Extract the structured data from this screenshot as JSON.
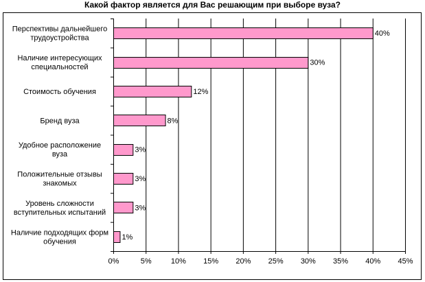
{
  "chart_data": {
    "type": "bar",
    "orientation": "horizontal",
    "title": "Какой фактор является для Вас решающим при выборе вуза?",
    "categories": [
      [
        "Перспективы дальнейшего",
        "трудоустройства"
      ],
      [
        "Наличие интересующих",
        "специальностей"
      ],
      [
        "Стоимость обучения"
      ],
      [
        "Бренд вуза"
      ],
      [
        "Удобное расположение",
        "вуза"
      ],
      [
        "Положительные отзывы",
        "знакомых"
      ],
      [
        "Уровень сложности",
        "вступительных испытаний"
      ],
      [
        "Наличие подходящих форм",
        "обучения"
      ]
    ],
    "values": [
      40,
      30,
      12,
      8,
      3,
      3,
      3,
      1
    ],
    "data_labels": [
      "40%",
      "30%",
      "12%",
      "8%",
      "3%",
      "3%",
      "3%",
      "1%"
    ],
    "xlim": [
      0,
      45
    ],
    "xticks": [
      0,
      5,
      10,
      15,
      20,
      25,
      30,
      35,
      40,
      45
    ],
    "xtick_labels": [
      "0%",
      "5%",
      "10%",
      "15%",
      "20%",
      "25%",
      "30%",
      "35%",
      "40%",
      "45%"
    ],
    "grid": "vertical",
    "legend": "none",
    "colors": {
      "bar_fill": "#ff99cc",
      "bar_stroke": "#000000",
      "grid": "#000000"
    }
  }
}
